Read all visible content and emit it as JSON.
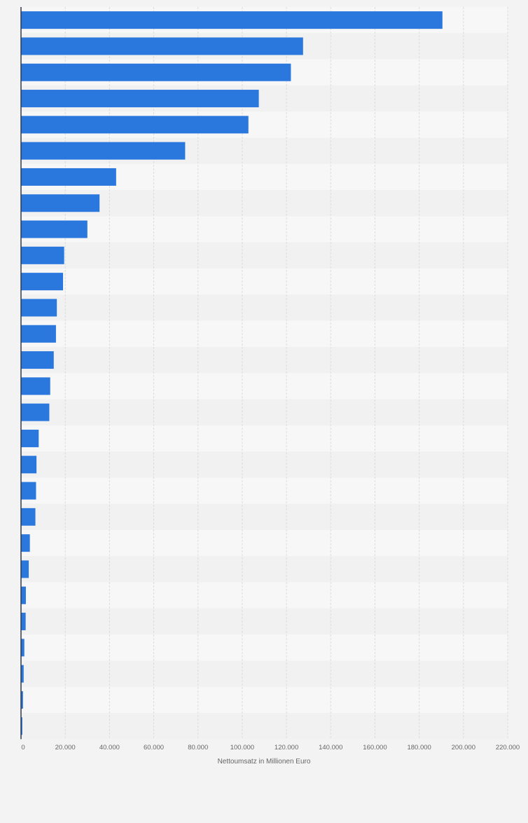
{
  "chart_data": {
    "type": "bar",
    "orientation": "horizontal",
    "categories": [
      "",
      "",
      "",
      "",
      "",
      "",
      "",
      "",
      "",
      "",
      "",
      "",
      "",
      "",
      "",
      "",
      "",
      "",
      "",
      "",
      "",
      "",
      "",
      "",
      "",
      "",
      "",
      ""
    ],
    "values": [
      190500,
      127500,
      122000,
      107500,
      102800,
      74200,
      43000,
      35500,
      30000,
      19500,
      19000,
      16200,
      15800,
      14800,
      13200,
      12800,
      8000,
      7000,
      6800,
      6500,
      4000,
      3500,
      2200,
      2100,
      1500,
      1200,
      900,
      600
    ],
    "xlabel": "Nettoumsatz in Millionen Euro",
    "xlim": [
      0,
      220000
    ],
    "x_ticks": [
      0,
      20000,
      40000,
      60000,
      80000,
      100000,
      120000,
      140000,
      160000,
      180000,
      200000,
      220000
    ],
    "x_tick_labels": [
      "0",
      "20.000",
      "40.000",
      "60.000",
      "80.000",
      "100.000",
      "120.000",
      "140.000",
      "160.000",
      "180.000",
      "200.000",
      "220.000"
    ],
    "grid": true,
    "legend": "none",
    "colors": {
      "bar": "#2a77de",
      "page_background": "#f3f3f3",
      "plot_band_light": "#f7f7f7",
      "plot_band_dark": "#f1f1f1",
      "gridline": "#dcdcdc",
      "axis": "#333a48",
      "tick_text": "#666666"
    }
  }
}
